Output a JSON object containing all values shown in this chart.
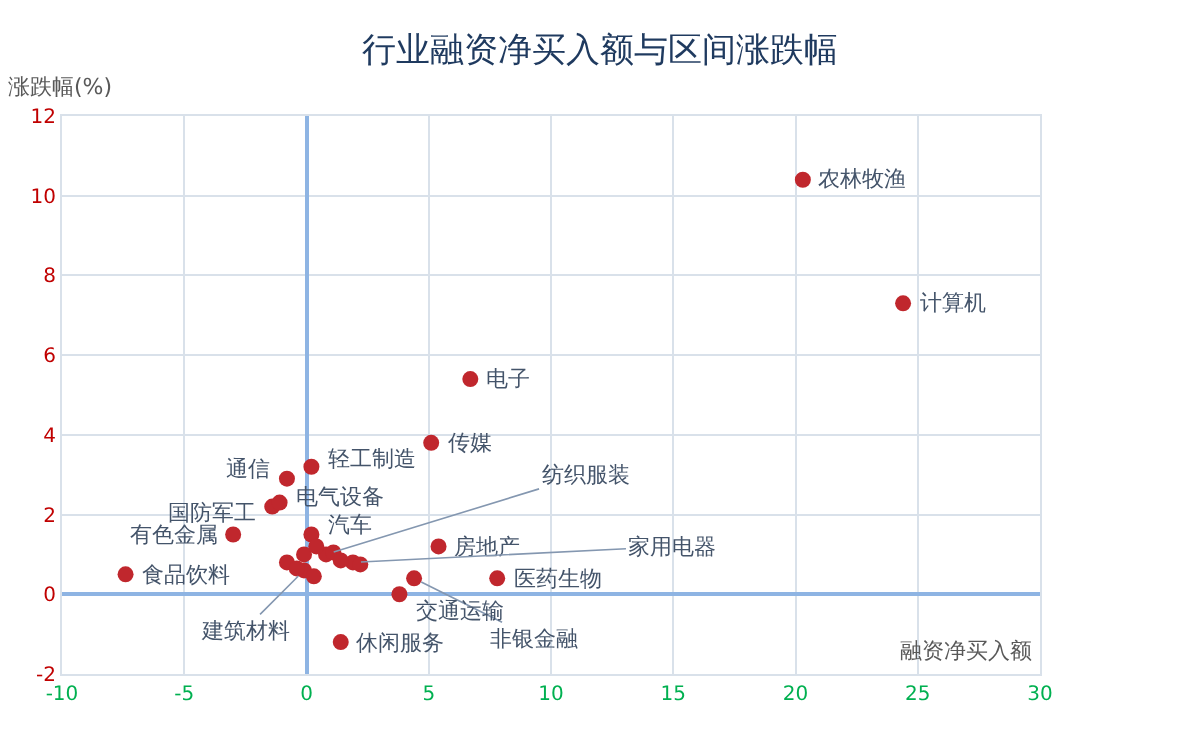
{
  "chart_data": {
    "type": "scatter",
    "title": "行业融资净买入额与区间涨跌幅",
    "xlabel": "融资净买入额",
    "ylabel": "涨跌幅(%)",
    "xlim": [
      -10,
      30
    ],
    "xticks": [
      -10,
      -5,
      0,
      5,
      10,
      15,
      20,
      25,
      30
    ],
    "ylim": [
      -2,
      12
    ],
    "yticks": [
      -2,
      0,
      2,
      4,
      6,
      8,
      10,
      12
    ],
    "grid": true,
    "marker": "circle",
    "series": [
      {
        "color": "#c0272d",
        "x": [
          20.3,
          24.4,
          6.7,
          5.1,
          0.2,
          -0.8,
          -1.4,
          -1.1,
          -3.0,
          -7.4,
          0.2,
          5.4,
          7.8,
          4.4,
          3.8,
          1.4,
          0.8,
          1.9,
          -0.1,
          -0.8,
          -0.1,
          -0.4,
          0.3,
          0.4,
          1.1,
          1.4,
          2.2
        ],
        "values": [
          10.4,
          7.3,
          5.4,
          3.8,
          3.2,
          2.9,
          2.2,
          2.3,
          1.5,
          0.5,
          1.5,
          1.2,
          0.4,
          0.4,
          0.0,
          -1.2,
          1.0,
          0.8,
          0.6,
          0.8,
          1.0,
          0.65,
          0.45,
          1.2,
          1.05,
          0.85,
          0.75
        ],
        "value_labels": [
          "农林牧渔",
          "计算机",
          "电子",
          "传媒",
          "轻工制造",
          "通信",
          "国防军工",
          "电气设备",
          "有色金属",
          "食品饮料",
          "汽车",
          "房地产",
          "医药生物",
          "非银金融",
          "交通运输",
          "休闲服务",
          "纺织服装",
          "家用电器",
          "建筑材料",
          null,
          null,
          null,
          null,
          null,
          null,
          null,
          null
        ]
      }
    ]
  }
}
